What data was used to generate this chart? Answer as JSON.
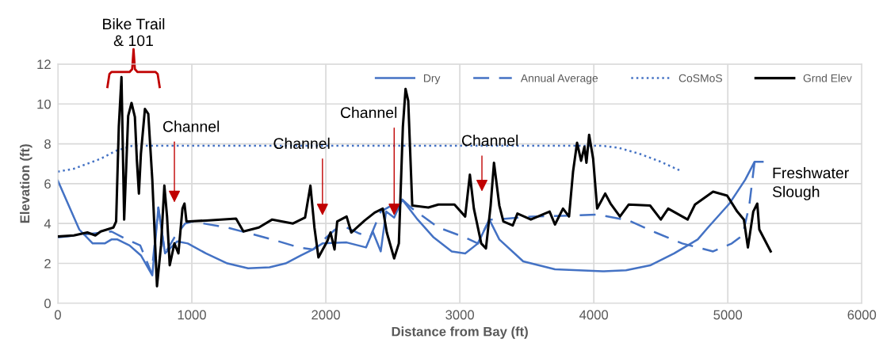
{
  "chart_data": {
    "type": "line",
    "xlabel": "Distance from Bay (ft)",
    "ylabel": "Elevation (ft)",
    "xlim": [
      0,
      6000
    ],
    "xticks": [
      0,
      1000,
      2000,
      3000,
      4000,
      5000,
      6000
    ],
    "ylim": [
      0,
      12
    ],
    "yticks": [
      0,
      2,
      4,
      6,
      8,
      10,
      12
    ],
    "grid": true,
    "legend": "top right",
    "marker": "none",
    "series": [
      {
        "name": "Dry",
        "color": "#4472c4",
        "line_style": "solid",
        "x": [
          0,
          160,
          260,
          350,
          400,
          445,
          535,
          620,
          705,
          750,
          800,
          890,
          970,
          1105,
          1265,
          1420,
          1580,
          1700,
          1815,
          1905,
          1975,
          2155,
          2300,
          2350,
          2410,
          2450,
          2510,
          2570,
          2685,
          2805,
          2940,
          3040,
          3135,
          3220,
          3295,
          3473,
          3710,
          4065,
          4240,
          4420,
          4600,
          4775,
          4852,
          5012,
          5130,
          5200,
          5260
        ],
        "values": [
          6.15,
          3.7,
          3.0,
          3.0,
          3.2,
          3.2,
          2.9,
          2.4,
          1.4,
          4.8,
          2.5,
          3.1,
          3.0,
          2.5,
          2.0,
          1.75,
          1.8,
          2.0,
          2.4,
          2.7,
          3.0,
          3.05,
          2.8,
          3.6,
          2.6,
          4.6,
          4.3,
          5.2,
          4.2,
          3.3,
          2.6,
          2.5,
          3.0,
          4.2,
          3.2,
          2.1,
          1.7,
          1.6,
          1.65,
          1.9,
          2.5,
          3.2,
          3.8,
          5.0,
          6.2,
          7.1,
          7.1
        ]
      },
      {
        "name": "Annual Average",
        "color": "#4472c4",
        "line_style": "dashed",
        "x": [
          0,
          200,
          400,
          515,
          615,
          700,
          750,
          800,
          870,
          950,
          1000,
          1265,
          1600,
          1800,
          1905,
          2070,
          2155,
          2250,
          2330,
          2410,
          2570,
          2645,
          2840,
          3040,
          3135,
          3220,
          3275,
          3530,
          3830,
          4025,
          4260,
          4460,
          4660,
          4890,
          5030,
          5110,
          5160,
          5200,
          5260
        ],
        "values": [
          3.3,
          3.45,
          3.6,
          3.2,
          2.9,
          1.5,
          4.8,
          2.5,
          3.3,
          4.0,
          4.1,
          3.8,
          3.2,
          2.8,
          2.7,
          3.7,
          3.8,
          3.5,
          3.3,
          4.6,
          5.2,
          4.75,
          3.8,
          3.3,
          3.0,
          4.2,
          4.2,
          4.35,
          4.4,
          4.45,
          4.15,
          3.55,
          3.0,
          2.6,
          3.0,
          3.4,
          4.9,
          7.1,
          7.1
        ]
      },
      {
        "name": "CoSMoS",
        "color": "#4472c4",
        "line_style": "dotted",
        "x": [
          0,
          120,
          320,
          435,
          555,
          1000,
          2000,
          3000,
          4065,
          4185,
          4340,
          4500,
          4645
        ],
        "values": [
          6.6,
          6.75,
          7.25,
          7.65,
          7.9,
          7.9,
          7.9,
          7.9,
          7.9,
          7.8,
          7.5,
          7.1,
          6.65
        ]
      },
      {
        "name": "Grnd Elev",
        "color": "#000000",
        "line_style": "solid",
        "x": [
          0,
          120,
          220,
          280,
          320,
          415,
          435,
          455,
          475,
          495,
          525,
          550,
          575,
          590,
          605,
          620,
          650,
          675,
          705,
          740,
          770,
          795,
          815,
          835,
          870,
          900,
          930,
          945,
          960,
          1105,
          1330,
          1385,
          1500,
          1600,
          1755,
          1845,
          1885,
          1915,
          1945,
          2010,
          2035,
          2065,
          2085,
          2155,
          2190,
          2290,
          2365,
          2425,
          2455,
          2510,
          2545,
          2575,
          2595,
          2615,
          2645,
          2765,
          2840,
          2960,
          3040,
          3075,
          3105,
          3160,
          3195,
          3230,
          3255,
          3295,
          3325,
          3395,
          3430,
          3530,
          3670,
          3710,
          3770,
          3815,
          3845,
          3875,
          3905,
          3930,
          3945,
          3965,
          3995,
          4025,
          4085,
          4125,
          4195,
          4260,
          4420,
          4500,
          4555,
          4700,
          4755,
          4890,
          4995,
          5070,
          5120,
          5150,
          5190,
          5220,
          5235,
          5320
        ],
        "values": [
          3.35,
          3.4,
          3.55,
          3.4,
          3.6,
          3.8,
          4.1,
          8.85,
          11.35,
          4.2,
          9.4,
          10.05,
          9.35,
          7.15,
          5.5,
          7.5,
          9.75,
          9.5,
          6.2,
          0.85,
          2.9,
          5.9,
          4.35,
          1.9,
          3.0,
          2.5,
          4.75,
          5.0,
          4.1,
          4.15,
          4.25,
          3.6,
          3.8,
          4.2,
          4.0,
          4.3,
          5.9,
          3.8,
          2.3,
          3.1,
          3.55,
          2.7,
          4.1,
          4.35,
          3.55,
          4.15,
          4.55,
          4.75,
          3.55,
          2.25,
          3.0,
          8.85,
          10.75,
          10.15,
          4.9,
          4.8,
          4.95,
          4.95,
          4.35,
          6.45,
          4.75,
          3.0,
          2.75,
          4.9,
          7.05,
          4.9,
          4.1,
          3.9,
          4.5,
          4.2,
          4.6,
          3.95,
          4.75,
          4.35,
          6.6,
          8.05,
          7.15,
          7.85,
          7.05,
          8.45,
          7.25,
          4.75,
          5.5,
          5.0,
          4.35,
          4.95,
          4.9,
          4.2,
          4.75,
          4.2,
          4.95,
          5.6,
          5.4,
          4.6,
          4.2,
          2.8,
          4.6,
          5.0,
          3.7,
          2.6
        ]
      }
    ],
    "annotations": [
      "Bike Trail\n& 101",
      "Channel",
      "Channel",
      {
        "text": "Channel",
        "x": 2510,
        "y": 4.3
      },
      "Channel",
      "Freshwater\nSlough"
    ]
  }
}
